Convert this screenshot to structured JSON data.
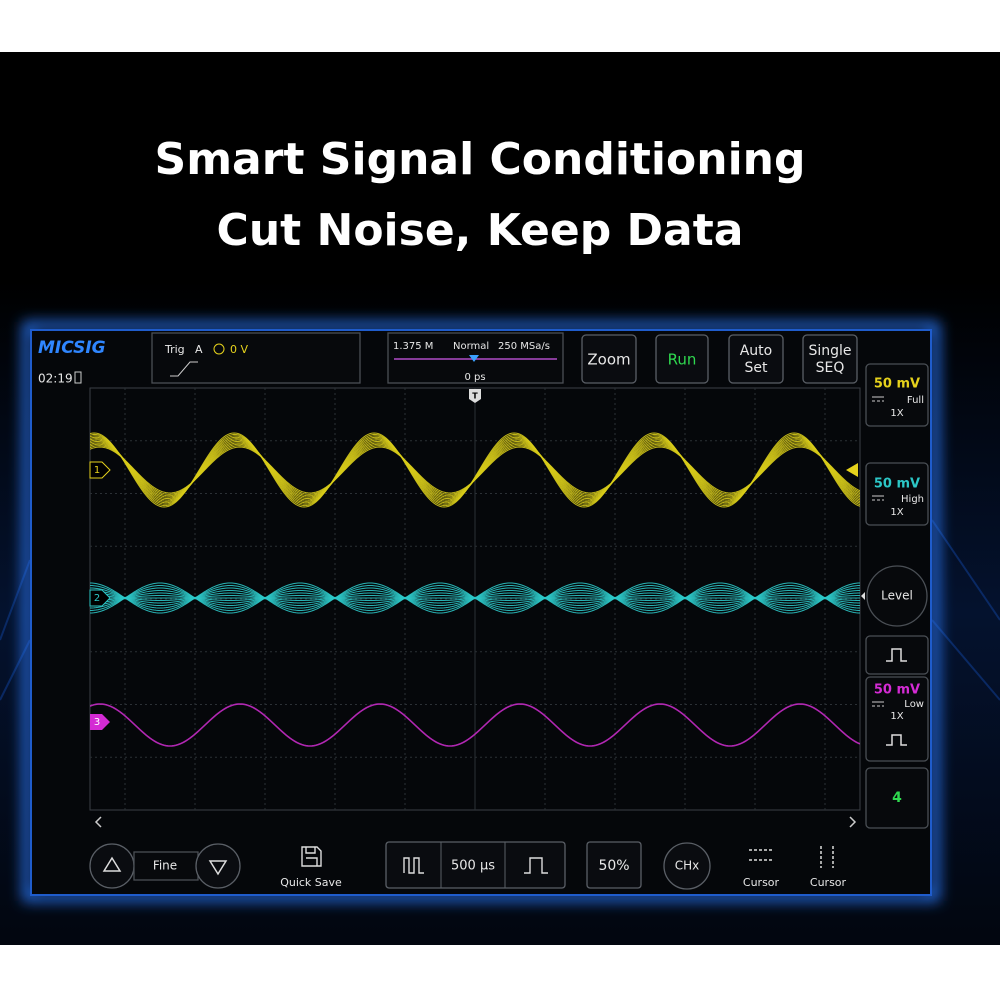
{
  "headline": {
    "line1": "Smart Signal Conditioning",
    "line2": "Cut Noise, Keep Data"
  },
  "status": {
    "logo": "MICSIG",
    "time": "02:19"
  },
  "trigger": {
    "label": "Trig",
    "source": "A",
    "level": "0 V"
  },
  "timebase": {
    "memory": "1.375 M",
    "mode": "Normal",
    "sample_rate": "250 MSa/s",
    "offset": "0 ps",
    "marker": "T"
  },
  "buttons": {
    "zoom": "Zoom",
    "run": "Run",
    "auto_set": [
      "Auto",
      "Set"
    ],
    "single_seq": [
      "Single",
      "SEQ"
    ]
  },
  "channels": [
    {
      "marker": "1",
      "scale": "50 mV",
      "bandwidth": "Full",
      "probe": "1X"
    },
    {
      "marker": "2",
      "scale": "50 mV",
      "bandwidth": "High",
      "probe": "1X"
    },
    {
      "marker": "3",
      "scale": "50 mV",
      "bandwidth": "Low",
      "probe": "1X"
    }
  ],
  "side": {
    "level": "Level",
    "channel4": "4"
  },
  "bottom": {
    "fine": "Fine",
    "quick_save": "Quick Save",
    "timebase": "500 µs",
    "trigger_position": "50%",
    "channel_select": "CHx",
    "cursor_h": "Cursor",
    "cursor_v": "Cursor"
  }
}
